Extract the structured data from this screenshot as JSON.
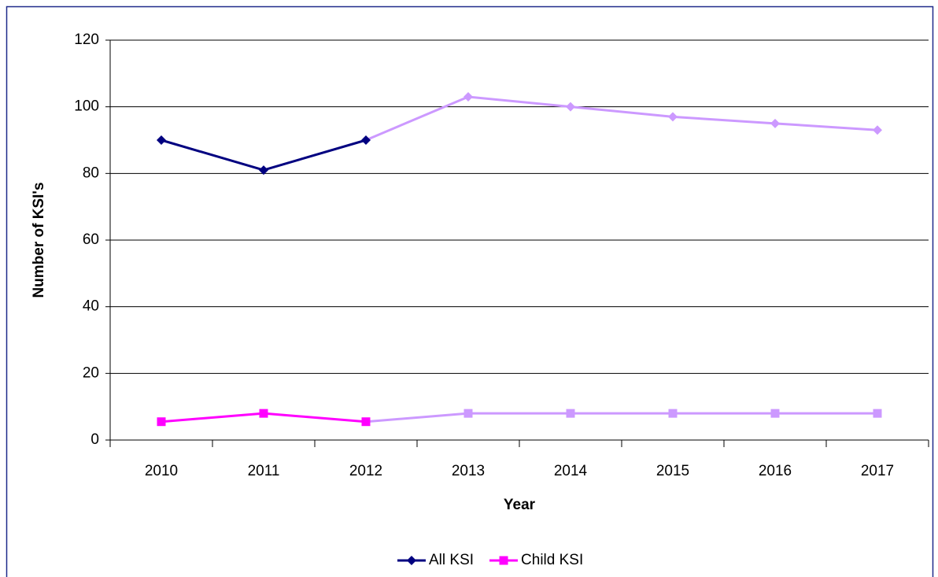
{
  "chart_data": {
    "type": "line",
    "x_label": "Year",
    "y_label": "Number of KSI's",
    "categories": [
      "2010",
      "2011",
      "2012",
      "2013",
      "2014",
      "2015",
      "2016",
      "2017"
    ],
    "series": [
      {
        "name": "All KSI",
        "color": "#000080",
        "marker": "diamond",
        "values": [
          90,
          81,
          90,
          103,
          100,
          97,
          95,
          93
        ]
      },
      {
        "name": "Child KSI",
        "color": "#ff00ff",
        "marker": "square",
        "values": [
          5.5,
          8,
          5.5,
          8,
          8,
          8,
          8,
          8
        ]
      }
    ],
    "projection": {
      "from_index": 2,
      "color": "#cc99ff"
    },
    "ylim": [
      0,
      120
    ],
    "yticks": [
      0,
      20,
      40,
      60,
      80,
      100,
      120
    ],
    "grid": true,
    "legend": "bottom"
  }
}
